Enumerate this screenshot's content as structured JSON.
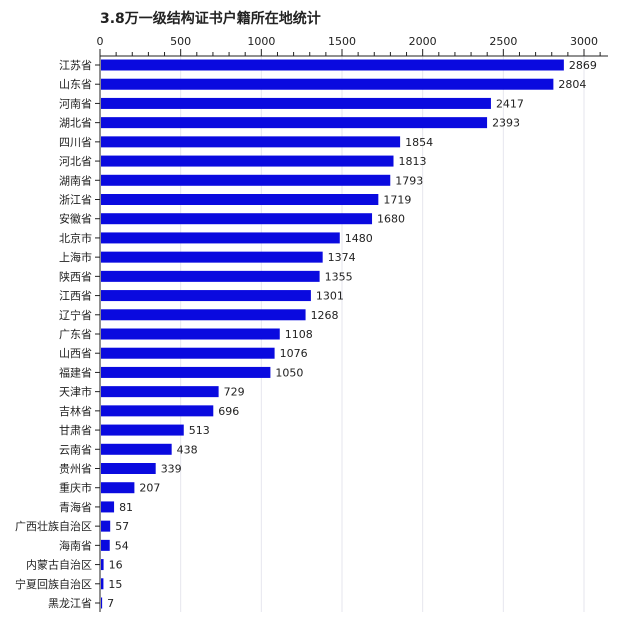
{
  "chart_data": {
    "type": "bar",
    "orientation": "horizontal",
    "title": "3.8万一级结构证书户籍所在地统计",
    "xlabel": "",
    "ylabel": "",
    "xlim": [
      0,
      3150
    ],
    "x_ticks": [
      0,
      500,
      1000,
      1500,
      2000,
      2500,
      3000
    ],
    "x_axis_position": "top",
    "grid": true,
    "bar_color": "#0a0adf",
    "categories": [
      "江苏省",
      "山东省",
      "河南省",
      "湖北省",
      "四川省",
      "河北省",
      "湖南省",
      "浙江省",
      "安徽省",
      "北京市",
      "上海市",
      "陕西省",
      "江西省",
      "辽宁省",
      "广东省",
      "山西省",
      "福建省",
      "天津市",
      "吉林省",
      "甘肃省",
      "云南省",
      "贵州省",
      "重庆市",
      "青海省",
      "广西壮族自治区",
      "海南省",
      "内蒙古自治区",
      "宁夏回族自治区",
      "黑龙江省"
    ],
    "values": [
      2869,
      2804,
      2417,
      2393,
      1854,
      1813,
      1793,
      1719,
      1680,
      1480,
      1374,
      1355,
      1301,
      1268,
      1108,
      1076,
      1050,
      729,
      696,
      513,
      438,
      339,
      207,
      81,
      57,
      54,
      16,
      15,
      7
    ]
  }
}
